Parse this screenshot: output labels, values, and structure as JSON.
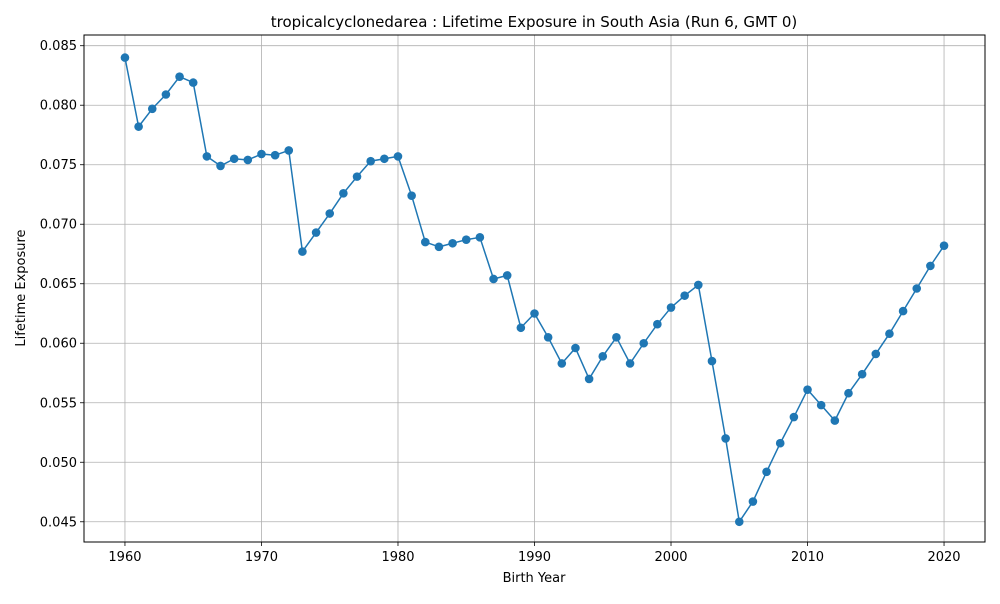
{
  "chart_data": {
    "type": "line",
    "title": "tropicalcyclonedarea : Lifetime Exposure in South Asia (Run 6, GMT 0)",
    "xlabel": "Birth Year",
    "ylabel": "Lifetime Exposure",
    "xlim": [
      1957,
      2023
    ],
    "ylim": [
      0.0433,
      0.0859
    ],
    "xticks": [
      1960,
      1970,
      1980,
      1990,
      2000,
      2010,
      2020
    ],
    "yticks": [
      0.045,
      0.05,
      0.055,
      0.06,
      0.065,
      0.07,
      0.075,
      0.08,
      0.085
    ],
    "ytick_labels": [
      "0.045",
      "0.050",
      "0.055",
      "0.060",
      "0.065",
      "0.070",
      "0.075",
      "0.080",
      "0.085"
    ],
    "grid": true,
    "marker": "circle",
    "line_color": "#1f77b4",
    "x": [
      1960,
      1961,
      1962,
      1963,
      1964,
      1965,
      1966,
      1967,
      1968,
      1969,
      1970,
      1971,
      1972,
      1973,
      1974,
      1975,
      1976,
      1977,
      1978,
      1979,
      1980,
      1981,
      1982,
      1983,
      1984,
      1985,
      1986,
      1987,
      1988,
      1989,
      1990,
      1991,
      1992,
      1993,
      1994,
      1995,
      1996,
      1997,
      1998,
      1999,
      2000,
      2001,
      2002,
      2003,
      2004,
      2005,
      2006,
      2007,
      2008,
      2009,
      2010,
      2011,
      2012,
      2013,
      2014,
      2015,
      2016,
      2017,
      2018,
      2019,
      2020
    ],
    "series": [
      {
        "values": [
          0.084,
          0.0782,
          0.0797,
          0.0809,
          0.0824,
          0.0819,
          0.0757,
          0.0749,
          0.0755,
          0.0754,
          0.0759,
          0.0758,
          0.0762,
          0.0677,
          0.0693,
          0.0709,
          0.0726,
          0.074,
          0.0753,
          0.0755,
          0.0757,
          0.0724,
          0.0685,
          0.0681,
          0.0684,
          0.0687,
          0.0689,
          0.0654,
          0.0657,
          0.0613,
          0.0625,
          0.0605,
          0.0583,
          0.0596,
          0.057,
          0.0589,
          0.0605,
          0.0583,
          0.06,
          0.0616,
          0.063,
          0.064,
          0.0649,
          0.0585,
          0.052,
          0.045,
          0.0467,
          0.0492,
          0.0516,
          0.0538,
          0.0561,
          0.0548,
          0.0535,
          0.0558,
          0.0574,
          0.0591,
          0.0608,
          0.0627,
          0.0646,
          0.0665,
          0.0682
        ]
      }
    ]
  }
}
